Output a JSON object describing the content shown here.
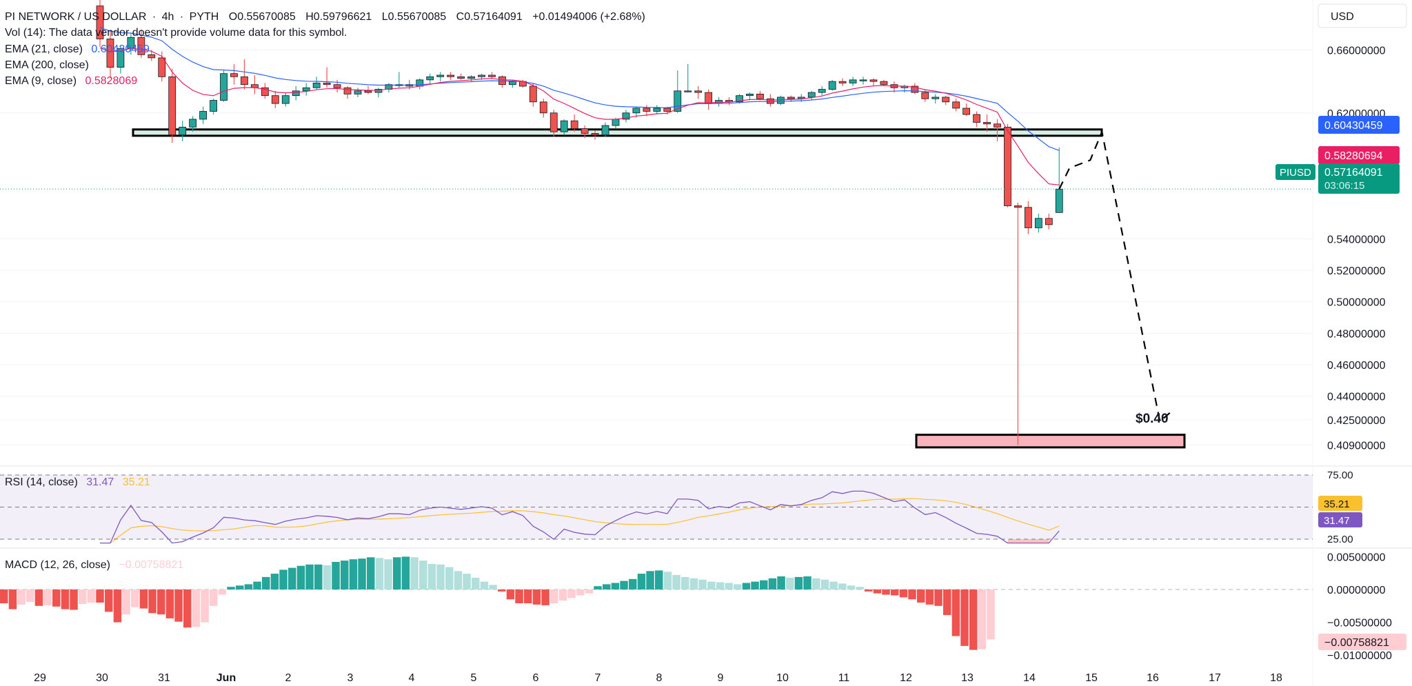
{
  "header": {
    "symbol": "PI NETWORK / US DOLLAR",
    "timeframe": "4h",
    "exchange": "PYTH",
    "open": "O0.55670085",
    "high": "H0.59796621",
    "low": "L0.55670085",
    "close": "C0.57164091",
    "change": "+0.01494006 (+2.68%)",
    "vol_text": "Vol (14): The data vendor doesn't provide volume data for this symbol.",
    "ema21_label": "EMA (21, close)",
    "ema21_value": "0.60430459",
    "ema200_label": "EMA (200, close)",
    "ema9_label": "EMA (9, close)",
    "ema9_value": "0.5828069"
  },
  "currency": "USD",
  "price_badges": {
    "ema21": "0.60430459",
    "ema9": "0.58280694",
    "last": "0.57164091",
    "countdown": "03:06:15",
    "ticker": "PIUSD"
  },
  "annotation": {
    "target_label": "$0.40"
  },
  "rsi": {
    "label": "RSI (14, close)",
    "value": "31.47",
    "ma_value": "35.21",
    "levels": [
      "75.00",
      "50.00",
      "25.00"
    ]
  },
  "macd": {
    "label": "MACD (12, 26, close)",
    "value": "−0.00758821"
  },
  "colors": {
    "up": "#26a69a",
    "down": "#ef5350",
    "up_fade": "#b2dfdb",
    "down_fade": "#ffcdd2",
    "ema21": "#2962ff",
    "ema9": "#e91e63",
    "rsi": "#7e57c2",
    "rsi_ma": "#fbc02d",
    "zone_top": "#d6efe6",
    "zone_bottom": "#f8b3bd",
    "last_price": "#089981"
  },
  "chart_data": [
    {
      "type": "candlestick",
      "title": "PI NETWORK / US DOLLAR",
      "x_ticks": [
        "29",
        "30",
        "31",
        "Jun",
        "2",
        "3",
        "4",
        "5",
        "6",
        "7",
        "8",
        "9",
        "10",
        "11",
        "12",
        "13",
        "14",
        "15",
        "16",
        "17",
        "18"
      ],
      "y_ticks": [
        "0.66000000",
        "0.62000000",
        "0.54000000",
        "0.52000000",
        "0.50000000",
        "0.48000000",
        "0.46000000",
        "0.44000000",
        "0.42500000",
        "0.40900000"
      ],
      "ohlc": [
        [
          0.688,
          0.694,
          0.662,
          0.667
        ],
        [
          0.667,
          0.672,
          0.642,
          0.649
        ],
        [
          0.649,
          0.663,
          0.645,
          0.661
        ],
        [
          0.661,
          0.671,
          0.657,
          0.668
        ],
        [
          0.668,
          0.673,
          0.655,
          0.657
        ],
        [
          0.657,
          0.66,
          0.653,
          0.655
        ],
        [
          0.655,
          0.659,
          0.64,
          0.643
        ],
        [
          0.643,
          0.648,
          0.601,
          0.606
        ],
        [
          0.606,
          0.615,
          0.602,
          0.611
        ],
        [
          0.611,
          0.618,
          0.608,
          0.616
        ],
        [
          0.616,
          0.624,
          0.613,
          0.621
        ],
        [
          0.621,
          0.629,
          0.619,
          0.628
        ],
        [
          0.628,
          0.647,
          0.627,
          0.645
        ],
        [
          0.645,
          0.651,
          0.638,
          0.643
        ],
        [
          0.643,
          0.654,
          0.635,
          0.638
        ],
        [
          0.638,
          0.644,
          0.632,
          0.636
        ],
        [
          0.636,
          0.639,
          0.629,
          0.631
        ],
        [
          0.631,
          0.634,
          0.623,
          0.626
        ],
        [
          0.626,
          0.633,
          0.624,
          0.631
        ],
        [
          0.631,
          0.637,
          0.628,
          0.634
        ],
        [
          0.634,
          0.639,
          0.631,
          0.636
        ],
        [
          0.636,
          0.643,
          0.635,
          0.639
        ],
        [
          0.639,
          0.649,
          0.636,
          0.638
        ],
        [
          0.638,
          0.641,
          0.633,
          0.636
        ],
        [
          0.636,
          0.637,
          0.629,
          0.632
        ],
        [
          0.632,
          0.636,
          0.63,
          0.634
        ],
        [
          0.634,
          0.637,
          0.632,
          0.633
        ],
        [
          0.633,
          0.636,
          0.63,
          0.635
        ],
        [
          0.635,
          0.639,
          0.633,
          0.638
        ],
        [
          0.638,
          0.646,
          0.636,
          0.638
        ],
        [
          0.638,
          0.641,
          0.635,
          0.637
        ],
        [
          0.637,
          0.642,
          0.635,
          0.641
        ],
        [
          0.641,
          0.645,
          0.638,
          0.643
        ],
        [
          0.643,
          0.646,
          0.64,
          0.644
        ],
        [
          0.644,
          0.646,
          0.641,
          0.643
        ],
        [
          0.643,
          0.645,
          0.641,
          0.642
        ],
        [
          0.642,
          0.644,
          0.64,
          0.643
        ],
        [
          0.643,
          0.645,
          0.641,
          0.644
        ],
        [
          0.644,
          0.646,
          0.642,
          0.643
        ],
        [
          0.643,
          0.644,
          0.636,
          0.638
        ],
        [
          0.638,
          0.641,
          0.636,
          0.64
        ],
        [
          0.64,
          0.641,
          0.636,
          0.637
        ],
        [
          0.637,
          0.639,
          0.624,
          0.627
        ],
        [
          0.627,
          0.629,
          0.617,
          0.62
        ],
        [
          0.62,
          0.622,
          0.605,
          0.608
        ],
        [
          0.608,
          0.616,
          0.606,
          0.615
        ],
        [
          0.615,
          0.619,
          0.608,
          0.61
        ],
        [
          0.61,
          0.612,
          0.604,
          0.607
        ],
        [
          0.607,
          0.609,
          0.603,
          0.606
        ],
        [
          0.606,
          0.614,
          0.605,
          0.612
        ],
        [
          0.612,
          0.617,
          0.61,
          0.616
        ],
        [
          0.616,
          0.622,
          0.614,
          0.62
        ],
        [
          0.62,
          0.624,
          0.617,
          0.623
        ],
        [
          0.623,
          0.625,
          0.618,
          0.621
        ],
        [
          0.621,
          0.625,
          0.619,
          0.623
        ],
        [
          0.623,
          0.624,
          0.619,
          0.621
        ],
        [
          0.621,
          0.647,
          0.62,
          0.634
        ],
        [
          0.634,
          0.651,
          0.633,
          0.634
        ],
        [
          0.634,
          0.637,
          0.629,
          0.633
        ],
        [
          0.633,
          0.635,
          0.622,
          0.626
        ],
        [
          0.626,
          0.63,
          0.624,
          0.628
        ],
        [
          0.628,
          0.63,
          0.625,
          0.627
        ],
        [
          0.627,
          0.632,
          0.626,
          0.631
        ],
        [
          0.631,
          0.633,
          0.628,
          0.632
        ],
        [
          0.632,
          0.634,
          0.628,
          0.629
        ],
        [
          0.629,
          0.632,
          0.624,
          0.626
        ],
        [
          0.626,
          0.631,
          0.625,
          0.63
        ],
        [
          0.63,
          0.631,
          0.627,
          0.629
        ],
        [
          0.629,
          0.632,
          0.627,
          0.63
        ],
        [
          0.63,
          0.634,
          0.628,
          0.633
        ],
        [
          0.633,
          0.637,
          0.631,
          0.635
        ],
        [
          0.635,
          0.641,
          0.634,
          0.64
        ],
        [
          0.64,
          0.642,
          0.637,
          0.639
        ],
        [
          0.639,
          0.643,
          0.637,
          0.641
        ],
        [
          0.641,
          0.643,
          0.638,
          0.641
        ],
        [
          0.641,
          0.642,
          0.637,
          0.64
        ],
        [
          0.64,
          0.641,
          0.637,
          0.638
        ],
        [
          0.638,
          0.64,
          0.633,
          0.636
        ],
        [
          0.636,
          0.638,
          0.633,
          0.637
        ],
        [
          0.637,
          0.639,
          0.632,
          0.633
        ],
        [
          0.633,
          0.635,
          0.627,
          0.629
        ],
        [
          0.629,
          0.632,
          0.626,
          0.63
        ],
        [
          0.63,
          0.631,
          0.625,
          0.627
        ],
        [
          0.627,
          0.629,
          0.621,
          0.623
        ],
        [
          0.623,
          0.626,
          0.618,
          0.619
        ],
        [
          0.619,
          0.621,
          0.611,
          0.614
        ],
        [
          0.614,
          0.619,
          0.608,
          0.613
        ],
        [
          0.613,
          0.616,
          0.602,
          0.611
        ],
        [
          0.611,
          0.613,
          0.56,
          0.561
        ],
        [
          0.561,
          0.563,
          0.409,
          0.56
        ],
        [
          0.56,
          0.564,
          0.543,
          0.547
        ],
        [
          0.547,
          0.556,
          0.544,
          0.553
        ],
        [
          0.553,
          0.556,
          0.546,
          0.549
        ],
        [
          0.5567,
          0.598,
          0.5567,
          0.5716
        ]
      ],
      "zones": [
        {
          "low": 0.6055,
          "high": 0.6095,
          "label": ""
        },
        {
          "low": 0.4075,
          "high": 0.4155,
          "label": "$0.40"
        }
      ],
      "projection": [
        [
          0.5716,
          0.5716
        ],
        [
          0.5716,
          0.585
        ],
        [
          0.585,
          0.59
        ],
        [
          0.59,
          0.608
        ],
        [
          0.608,
          0.424
        ],
        [
          0.424,
          0.43
        ]
      ],
      "last_price": 0.57164091,
      "ema21_last": 0.60430459,
      "ema9_last": 0.58280694,
      "ylim": [
        0.4,
        0.69
      ]
    },
    {
      "type": "line",
      "title": "RSI (14, close)",
      "levels": [
        75,
        50,
        25
      ],
      "ylim": [
        18,
        82
      ],
      "rsi_last": 31.47,
      "rsi_ma_last": 35.21
    },
    {
      "type": "bar",
      "title": "MACD (12, 26, close)",
      "y_ticks": [
        "0.00500000",
        "0.00000000",
        "−0.00500000",
        "−0.01000000"
      ],
      "ylim": [
        -0.0105,
        0.0063
      ],
      "histogram": [
        -0.0021,
        -0.003,
        -0.0023,
        -0.0019,
        -0.0025,
        -0.0024,
        -0.0026,
        -0.003,
        -0.0031,
        -0.0022,
        -0.002,
        -0.002,
        -0.0034,
        -0.005,
        -0.0038,
        -0.0027,
        -0.0029,
        -0.0036,
        -0.0038,
        -0.0044,
        -0.0049,
        -0.0058,
        -0.0057,
        -0.005,
        -0.0025,
        -0.0008,
        0.0004,
        0.0006,
        0.0008,
        0.0012,
        0.0019,
        0.0024,
        0.003,
        0.0033,
        0.0036,
        0.0038,
        0.0038,
        0.0037,
        0.0042,
        0.0044,
        0.0046,
        0.0047,
        0.0049,
        0.0048,
        0.0046,
        0.0049,
        0.005,
        0.0049,
        0.0044,
        0.0039,
        0.0038,
        0.0034,
        0.0028,
        0.0024,
        0.0018,
        0.0012,
        0.0007,
        -0.0003,
        -0.0015,
        -0.0021,
        -0.0021,
        -0.0023,
        -0.0024,
        -0.0021,
        -0.0017,
        -0.0013,
        -0.0009,
        -0.0006,
        0.0005,
        0.0008,
        0.001,
        0.0013,
        0.0016,
        0.0024,
        0.0028,
        0.0029,
        0.0027,
        0.0022,
        0.0019,
        0.0017,
        0.0015,
        0.0012,
        0.0011,
        0.001,
        0.0008,
        0.001,
        0.0012,
        0.0014,
        0.0017,
        0.002,
        0.0018,
        0.0019,
        0.002,
        0.0017,
        0.0015,
        0.0012,
        0.0009,
        0.0006,
        0.0004,
        -0.0003,
        -0.0006,
        -0.0008,
        -0.0009,
        -0.0012,
        -0.0015,
        -0.002,
        -0.0023,
        -0.0025,
        -0.0039,
        -0.0071,
        -0.0086,
        -0.0092,
        -0.0091,
        -0.0076
      ]
    }
  ]
}
